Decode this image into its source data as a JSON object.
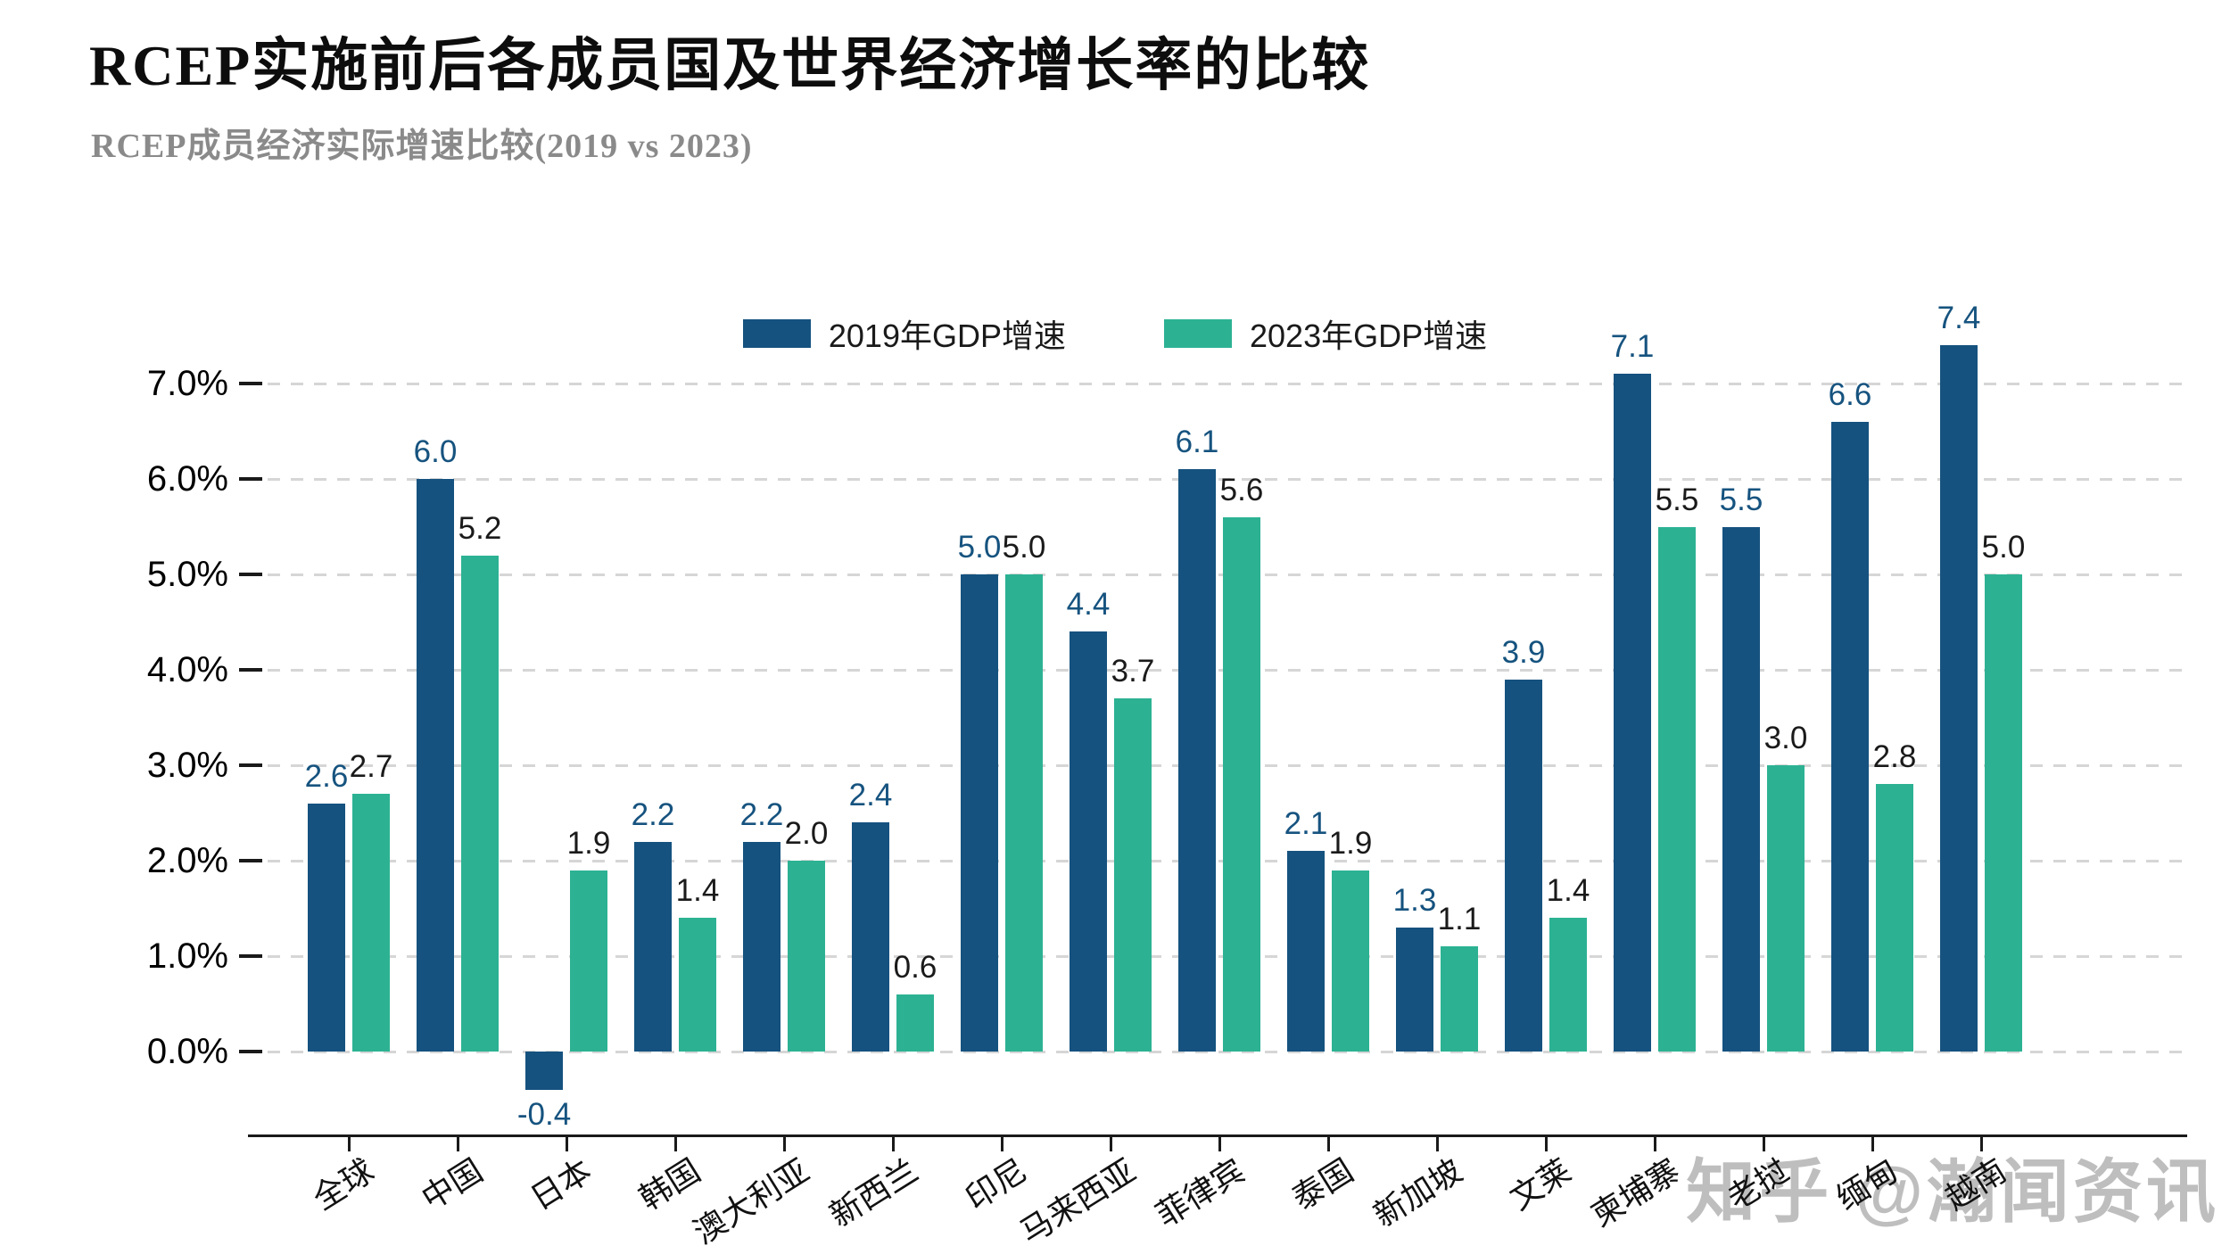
{
  "header": {
    "title": "RCEP实施前后各成员国及世界经济增长率的比较",
    "subtitle": "RCEP成员经济实际增速比较(2019 vs 2023)"
  },
  "watermark": {
    "text": "知乎 @瀚闻资讯"
  },
  "chart_data": {
    "type": "bar",
    "title": "RCEP成员经济实际增速比较(2019 vs 2023)",
    "categories": [
      "全球",
      "中国",
      "日本",
      "韩国",
      "澳大利亚",
      "新西兰",
      "印尼",
      "马来西亚",
      "菲律宾",
      "泰国",
      "新加坡",
      "文莱",
      "柬埔寨",
      "老挝",
      "缅甸",
      "越南"
    ],
    "series": [
      {
        "name": "2019年GDP增速",
        "color": "#15527f",
        "values": [
          2.6,
          6.0,
          -0.4,
          2.2,
          2.2,
          2.4,
          5.0,
          4.4,
          6.1,
          2.1,
          1.3,
          3.9,
          7.1,
          5.5,
          6.6,
          7.4
        ]
      },
      {
        "name": "2023年GDP增速",
        "color": "#2cb293",
        "values": [
          2.7,
          5.2,
          1.9,
          1.4,
          2.0,
          0.6,
          5.0,
          3.7,
          5.6,
          1.9,
          1.1,
          1.4,
          5.5,
          3.0,
          2.8,
          5.0
        ]
      }
    ],
    "value_label_colors": {
      "series0": "#16537f",
      "series1": "#1a1a1a"
    },
    "yticks": {
      "values": [
        0,
        1,
        2,
        3,
        4,
        5,
        6,
        7
      ],
      "labels": [
        "0.0%",
        "1.0%",
        "2.0%",
        "3.0%",
        "4.0%",
        "5.0%",
        "6.0%",
        "7.0%"
      ]
    },
    "ylim": [
      -0.8,
      7.6
    ],
    "xlabel": "",
    "ylabel": "",
    "grid": "horizontal-dashed",
    "legend_position": "top-center",
    "value_labels_decimals": 1
  }
}
